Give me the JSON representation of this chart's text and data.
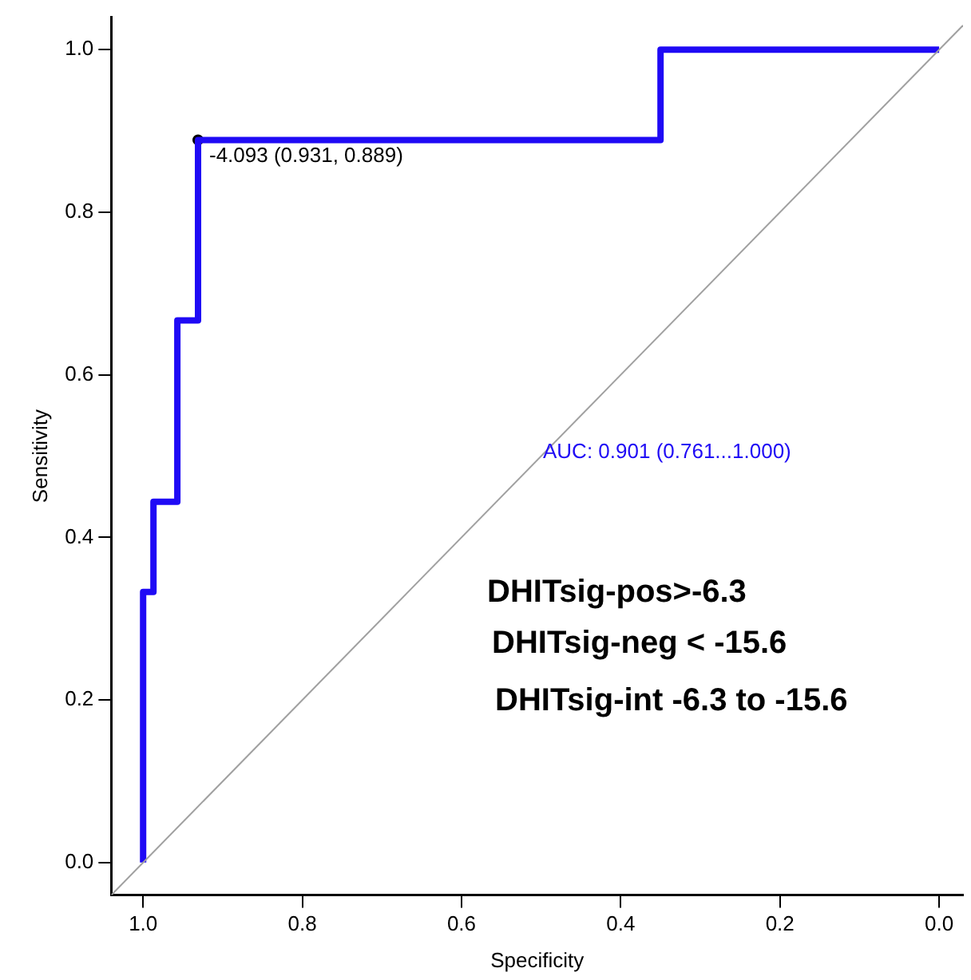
{
  "chart_data": {
    "type": "step",
    "xlabel": "Specificity",
    "ylabel": "Sensitivity",
    "xlim": [
      1.04,
      -0.03
    ],
    "ylim": [
      -0.04,
      1.04
    ],
    "xticks": [
      {
        "value": 1,
        "label": "1.0"
      },
      0.8,
      0.6,
      0.4,
      0.2,
      {
        "value": 0,
        "label": "0.0"
      }
    ],
    "yticks": [
      {
        "value": 0,
        "label": "0.0"
      },
      0.2,
      0.4,
      0.6,
      0.8,
      {
        "value": 1,
        "label": "1.0"
      }
    ],
    "series": [
      {
        "type": "line",
        "color": "#a0a0a0",
        "x": [
          1.04,
          -0.03
        ],
        "values": [
          -0.04,
          1.03
        ],
        "marker": "none"
      },
      {
        "color": "#1f0af5",
        "x": [
          1,
          1,
          0.987,
          0.957,
          0.931,
          0.35,
          0
        ],
        "values": [
          0,
          0.333,
          0.444,
          0.667,
          0.889,
          1,
          1
        ],
        "marker": "none"
      },
      {
        "type": "scatter",
        "color": "#000000",
        "x": [
          0.931
        ],
        "values": [
          0.889
        ],
        "marker": "circle"
      }
    ],
    "annotations": [
      {
        "text": "-4.093 (0.931, 0.889)",
        "x": 0.931,
        "y": 0.889
      },
      "AUC: 0.901 (0.761...1.000)",
      "DHITsig-pos>-6.3",
      "DHITsig-neg < -15.6",
      "DHITsig-int -6.3 to -15.6"
    ]
  }
}
